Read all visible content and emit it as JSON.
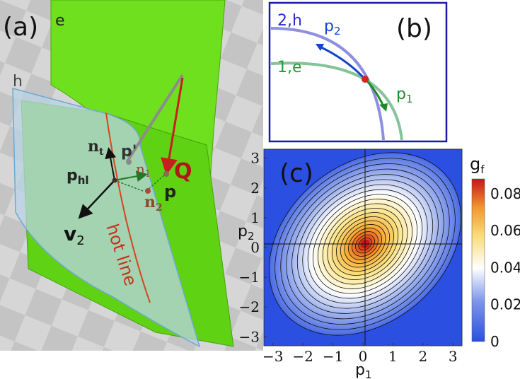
{
  "panels": {
    "a": {
      "tag": "(a)",
      "surface_e": "e",
      "surface_h": "h",
      "n_t": "n",
      "n_t_sub": "t",
      "n_1": "n",
      "n_1_sub": "1",
      "n_2": "n",
      "n_2_sub": "2",
      "p_prime": "p'",
      "p": "p",
      "p_hl": "p",
      "p_hl_sub": "hl",
      "Q": "Q",
      "v2": "v",
      "v2_sub": "2",
      "hot_line": "hot line",
      "colors": {
        "e_surface": "#6fe01e",
        "h_surface": "#b9d3e6",
        "hot_line": "#d8441f",
        "Q": "#b01818"
      }
    },
    "b": {
      "tag": "(b)",
      "band_h": "2,h",
      "band_e": "1,e",
      "p2": "p",
      "p2_sub": "2",
      "p1": "p",
      "p1_sub": "1",
      "colors": {
        "band_h": "#8f8fe2",
        "band_e": "#86c29a",
        "p2_arrow": "#1444cc",
        "p1_arrow": "#1f8a2b",
        "node": "#e02020",
        "frame": "#1a1ab0"
      }
    },
    "c": {
      "tag": "(c)",
      "colorbar_label": "g",
      "colorbar_sub": "f",
      "xlabel": "p",
      "xlabel_sub": "1",
      "ylabel": "p",
      "ylabel_sub": "2"
    }
  },
  "chart_data": {
    "type": "heatmap",
    "title": "",
    "x_ticks": [
      "-3",
      "-2",
      "-1",
      "0",
      "1",
      "2",
      "3"
    ],
    "y_ticks": [
      "3",
      "2",
      "1",
      "0",
      "-1",
      "-2",
      "-3"
    ],
    "xlim": [
      -3.3,
      3.3
    ],
    "ylim": [
      -3.3,
      3.3
    ],
    "colorbar_ticks": [
      "0.08",
      "0.06",
      "0.04",
      "0.02",
      "0"
    ],
    "colorbar_range": [
      0,
      0.088
    ],
    "peak": {
      "x": 0,
      "y": 0,
      "value": 0.088
    },
    "contour_tilt_deg": -40,
    "colormap": [
      "#2b4fe0",
      "#5a7ae6",
      "#a6b8ef",
      "#ffffff",
      "#fbe48a",
      "#f7b23a",
      "#e8581f",
      "#c8141a"
    ]
  }
}
